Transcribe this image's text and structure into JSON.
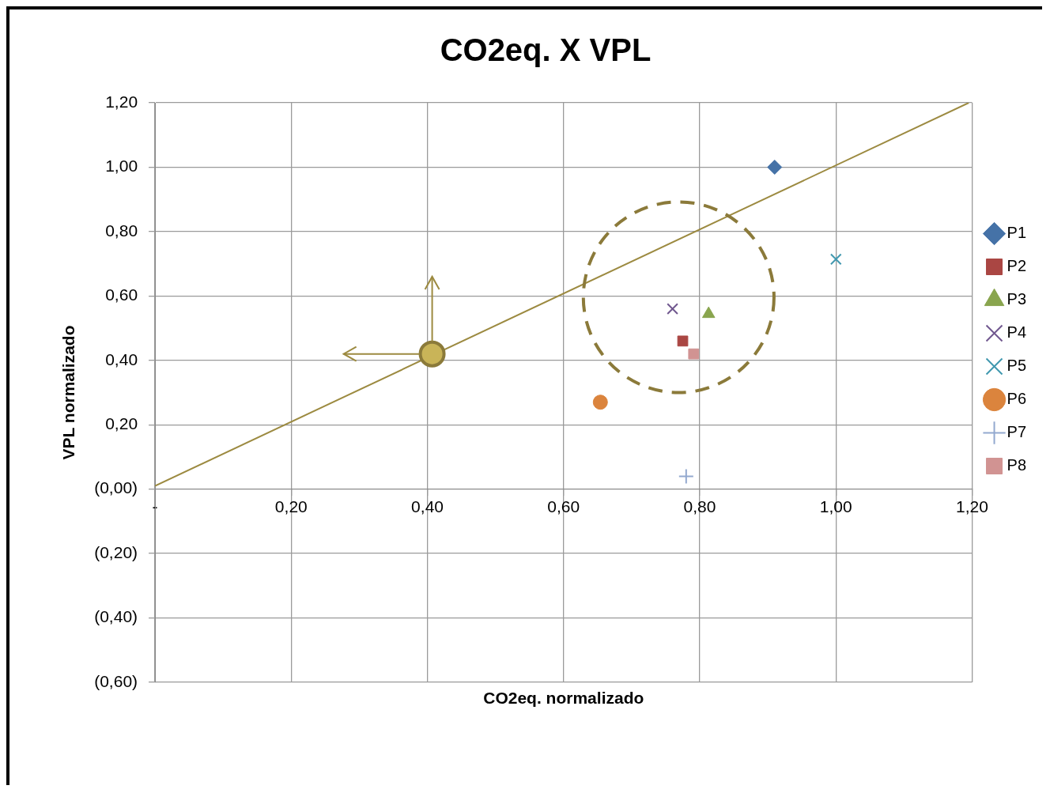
{
  "chart_data": {
    "type": "scatter",
    "title": "CO2eq. X VPL",
    "xlabel": "CO2eq. normalizado",
    "ylabel": "VPL normalizado",
    "xlim": [
      0,
      1.2
    ],
    "ylim": [
      -0.6,
      1.2
    ],
    "xticks": [
      {
        "value": 0,
        "label": "-"
      },
      {
        "value": 0.2,
        "label": "0,20"
      },
      {
        "value": 0.4,
        "label": "0,40"
      },
      {
        "value": 0.6,
        "label": "0,60"
      },
      {
        "value": 0.8,
        "label": "0,80"
      },
      {
        "value": 1,
        "label": "1,00"
      },
      {
        "value": 1.2,
        "label": "1,20"
      }
    ],
    "yticks": [
      {
        "value": -0.6,
        "label": "(0,60)"
      },
      {
        "value": -0.4,
        "label": "(0,40)"
      },
      {
        "value": -0.2,
        "label": "(0,20)"
      },
      {
        "value": 0,
        "label": "(0,00)"
      },
      {
        "value": 0.2,
        "label": "0,20"
      },
      {
        "value": 0.4,
        "label": "0,40"
      },
      {
        "value": 0.6,
        "label": "0,60"
      },
      {
        "value": 0.8,
        "label": "0,80"
      },
      {
        "value": 1,
        "label": "1,00"
      },
      {
        "value": 1.2,
        "label": "1,20"
      }
    ],
    "grid": true,
    "legend": "right",
    "series": [
      {
        "name": "P1",
        "color": "#4572a7",
        "marker": "diamond",
        "x": [
          0.91
        ],
        "values": [
          1.0
        ]
      },
      {
        "name": "P2",
        "color": "#aa4643",
        "marker": "square",
        "x": [
          0.775
        ],
        "values": [
          0.46
        ]
      },
      {
        "name": "P3",
        "color": "#89a54e",
        "marker": "triangle",
        "x": [
          0.813
        ],
        "values": [
          0.544
        ]
      },
      {
        "name": "P4",
        "color": "#71588f",
        "marker": "cross",
        "x": [
          0.76
        ],
        "values": [
          0.56
        ]
      },
      {
        "name": "P5",
        "color": "#4198af",
        "marker": "cross",
        "x": [
          1.0
        ],
        "values": [
          0.714
        ]
      },
      {
        "name": "P6",
        "color": "#db843d",
        "marker": "circle",
        "x": [
          0.654
        ],
        "values": [
          0.27
        ]
      },
      {
        "name": "P7",
        "color": "#93a9cf",
        "marker": "plus",
        "x": [
          0.78
        ],
        "values": [
          0.04
        ]
      },
      {
        "name": "P8",
        "color": "#d19392",
        "marker": "square",
        "x": [
          0.791
        ],
        "values": [
          0.42
        ]
      },
      {
        "color": "#c9b458",
        "marker": "circle",
        "x": [
          0.407
        ],
        "values": [
          0.42
        ]
      },
      {
        "type": "line",
        "color": "#9c8a40",
        "marker": "none",
        "x": [
          0,
          1.195
        ],
        "values": [
          0.01,
          1.2
        ]
      }
    ]
  }
}
